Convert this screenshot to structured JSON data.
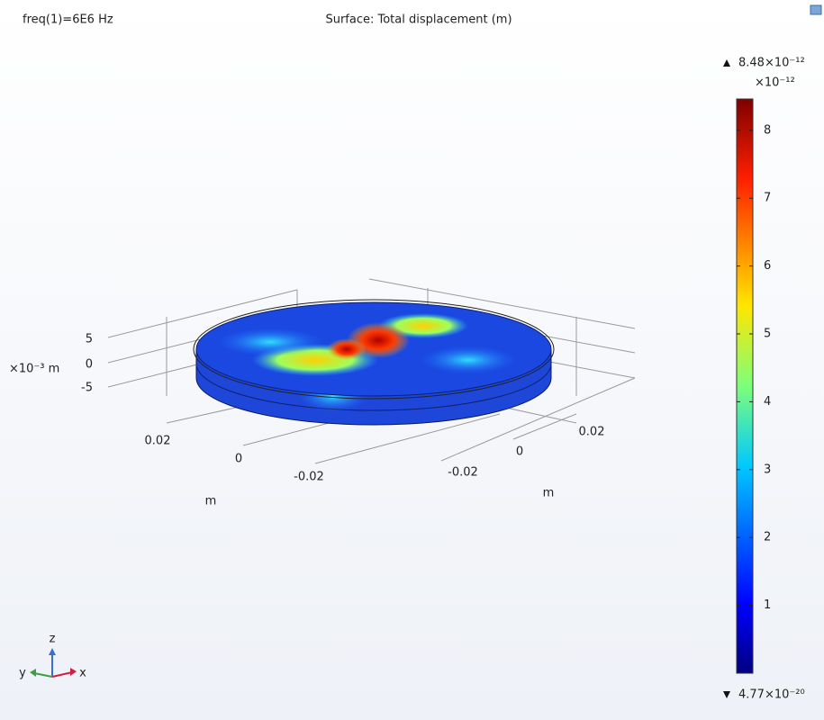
{
  "plot": {
    "frequency_label": "freq(1)=6E6 Hz",
    "title": "Surface: Total displacement (m)",
    "z_axis": {
      "ticks": [
        "5",
        "0",
        "-5"
      ],
      "unit": "×10⁻³ m"
    },
    "x_axis": {
      "ticks": [
        "0.02",
        "0",
        "-0.02"
      ],
      "unit": "m"
    },
    "y_axis": {
      "ticks": [
        "-0.02",
        "0",
        "0.02"
      ],
      "unit": "m"
    },
    "triad": {
      "z": "z",
      "y": "y",
      "x": "x"
    }
  },
  "colorbar": {
    "max_label": "8.48×10⁻¹²",
    "multiplier": "×10⁻¹²",
    "ticks": [
      1,
      2,
      3,
      4,
      5,
      6,
      7,
      8
    ],
    "min_label": "4.77×10⁻²⁰"
  }
}
